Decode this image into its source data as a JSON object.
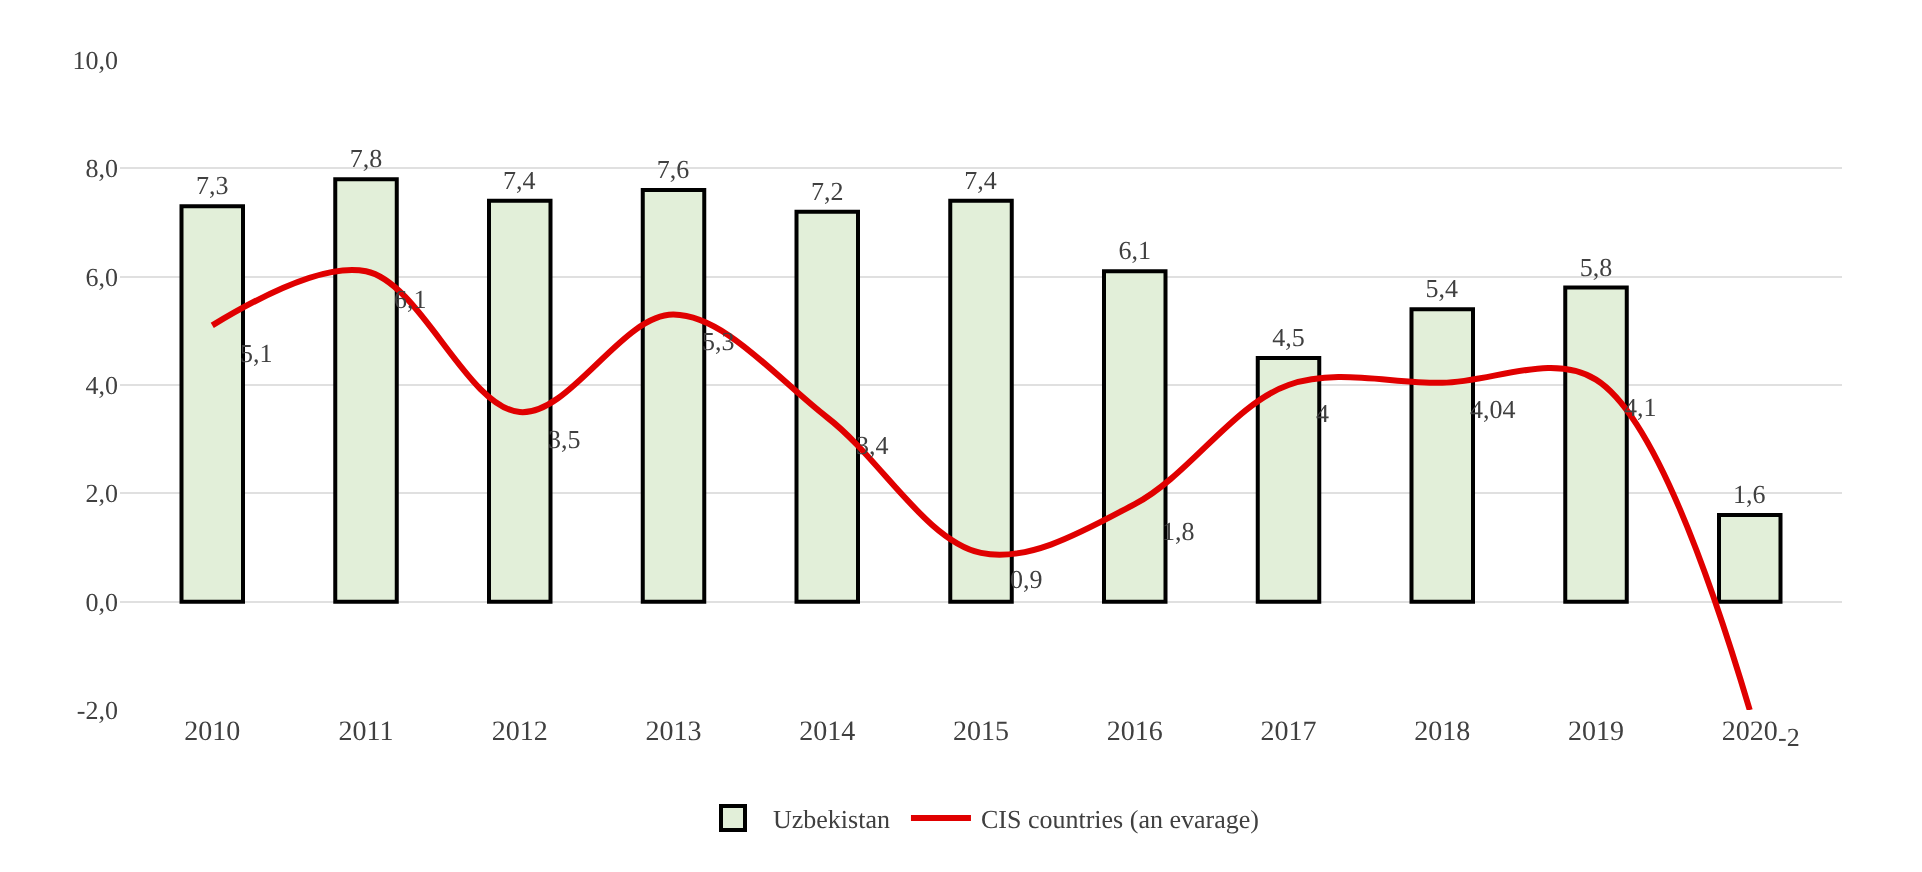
{
  "chart_data": {
    "type": "bar",
    "categories": [
      "2010",
      "2011",
      "2012",
      "2013",
      "2014",
      "2015",
      "2016",
      "2017",
      "2018",
      "2019",
      "2020"
    ],
    "series": [
      {
        "name": "Uzbekistan",
        "color": "#e2efd9",
        "values": [
          7.3,
          7.8,
          7.4,
          7.6,
          7.2,
          7.4,
          6.1,
          4.5,
          5.4,
          5.8,
          1.6
        ],
        "value_labels": [
          "7,3",
          "7,8",
          "7,4",
          "7,6",
          "7,2",
          "7,4",
          "6,1",
          "4,5",
          "5,4",
          "5,8",
          "1,6"
        ]
      },
      {
        "name": "CIS countries (an evarage)",
        "type": "line",
        "color": "#e00000",
        "values": [
          5.1,
          6.1,
          3.5,
          5.3,
          3.4,
          0.9,
          1.8,
          4,
          4.04,
          4.1,
          -2
        ],
        "value_labels": [
          "5,1",
          "6,1",
          "3,5",
          "5,3",
          "3,4",
          "0,9",
          "1,8",
          "4",
          "4,04",
          "4,1",
          "-2"
        ]
      }
    ],
    "ylim": [
      -2,
      10
    ],
    "yticks": [
      {
        "value": -2,
        "label": "-2,0"
      },
      {
        "value": 0,
        "label": "0,0"
      },
      {
        "value": 2,
        "label": "2,0"
      },
      {
        "value": 4,
        "label": "4,0"
      },
      {
        "value": 6,
        "label": "6,0"
      },
      {
        "value": 8,
        "label": "8,0"
      },
      {
        "value": 10,
        "label": "10,0"
      }
    ],
    "grid": "y",
    "legend": "bottom",
    "marker": "none",
    "line_style": "solid"
  }
}
